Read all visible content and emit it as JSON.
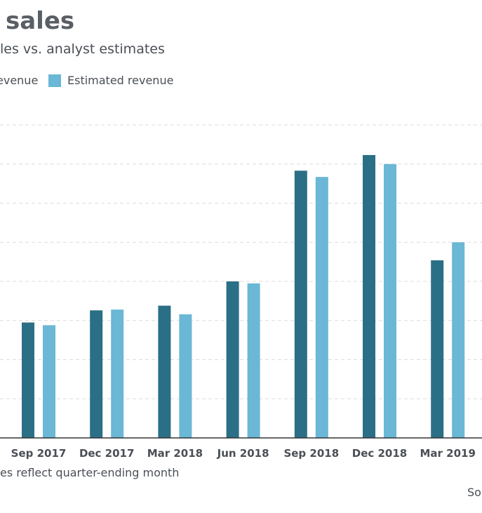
{
  "header": {
    "title": "sales",
    "subtitle": "les vs. analyst estimates"
  },
  "legend": {
    "items": [
      {
        "label": "evenue",
        "color": "#2a6f86"
      },
      {
        "label": "Estimated revenue",
        "color": "#6ab7d6"
      }
    ]
  },
  "footer": {
    "note": "es reflect quarter-ending month",
    "source": "So"
  },
  "colors": {
    "actual": "#2a6f86",
    "estimated": "#6ab7d6",
    "grid": "#dcdcdc",
    "axis": "#333333"
  },
  "chart_data": {
    "type": "bar",
    "categories": [
      "Sep 2017",
      "Dec 2017",
      "Mar 2018",
      "Jun 2018",
      "Sep 2018",
      "Dec 2018",
      "Mar 2019"
    ],
    "series": [
      {
        "name": "evenue",
        "values": [
          2.95,
          3.26,
          3.38,
          4.0,
          6.83,
          7.23,
          4.54
        ]
      },
      {
        "name": "Estimated revenue",
        "values": [
          2.88,
          3.28,
          3.16,
          3.95,
          6.67,
          7.0,
          5.0
        ]
      }
    ],
    "title": "sales",
    "xlabel": "",
    "ylabel": "",
    "ylim": [
      0,
      8
    ],
    "grid": true,
    "legend_position": "top-left"
  }
}
